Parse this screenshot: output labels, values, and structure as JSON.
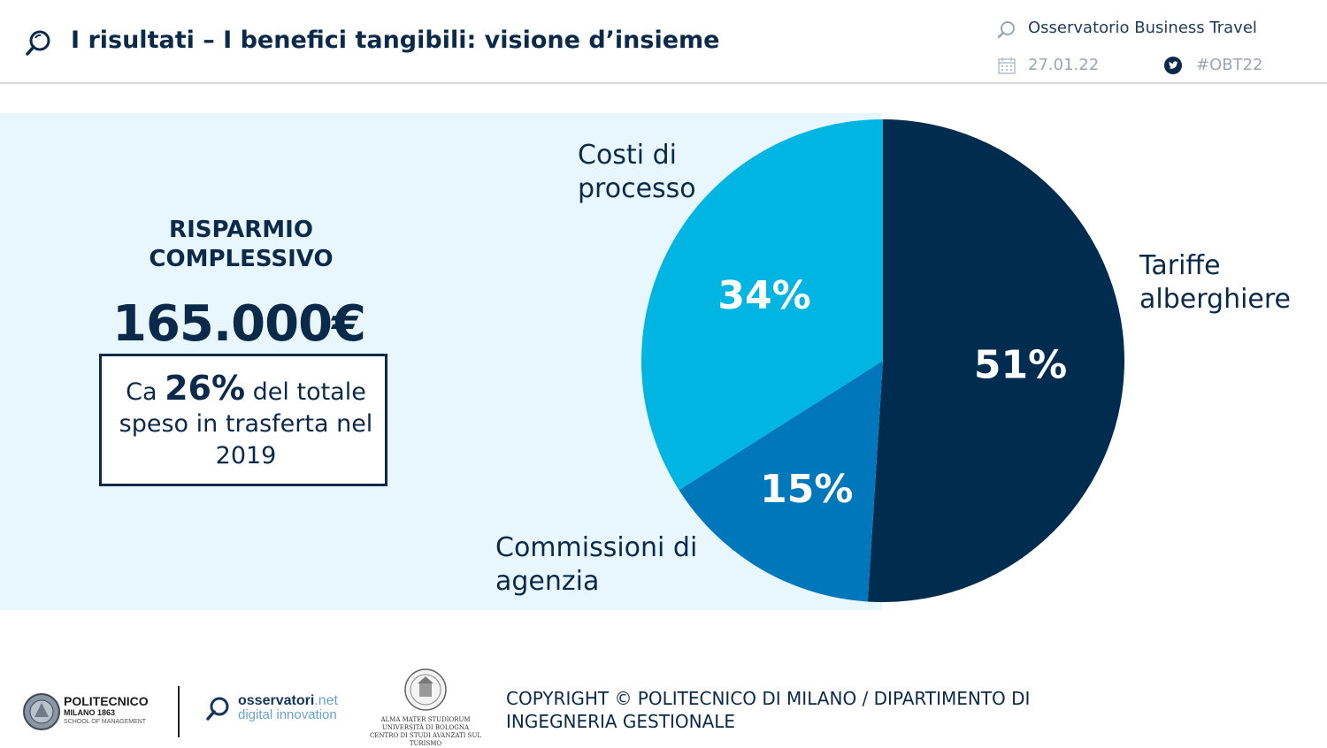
{
  "header": {
    "title": "I risultati – I benefici tangibili: visione d’insieme",
    "org": "Osservatorio Business Travel",
    "date": "27.01.22",
    "hashtag": "#OBT22"
  },
  "kpi": {
    "title_line1": "RISPARMIO",
    "title_line2": "COMPLESSIVO",
    "value": "165.000€",
    "note_prefix": "Ca ",
    "note_pct": "26%",
    "note_suffix": " del totale speso in trasferta nel 2019"
  },
  "chart_data": {
    "type": "pie",
    "slices": [
      {
        "name": "Tariffe alberghiere",
        "value": 51,
        "label": "51%",
        "color": "#002c50"
      },
      {
        "name": "Commissioni di agenzia",
        "value": 15,
        "label": "15%",
        "color": "#0077bb"
      },
      {
        "name": "Costi di processo",
        "value": 34,
        "label": "34%",
        "color": "#00b5e2"
      }
    ],
    "legend": "category labels outside slices",
    "label_lines": {
      "costi": [
        "Costi di",
        "processo"
      ],
      "tariffe": [
        "Tariffe",
        "alberghiere"
      ],
      "comm": [
        "Commissioni di",
        "agenzia"
      ]
    }
  },
  "footer": {
    "polimi_line1": "POLITECNICO",
    "polimi_line2": "MILANO 1863",
    "polimi_line3": "SCHOOL OF MANAGEMENT",
    "oss_name": "osservatori",
    "oss_tld": ".net",
    "oss_sub": "digital innovation",
    "bologna_line1": "ALMA MATER STUDIORUM",
    "bologna_line2": "UNIVERSITÀ DI BOLOGNA",
    "bologna_line3": "CENTRO DI STUDI AVANZATI SUL TURISMO",
    "copyright": "COPYRIGHT © POLITECNICO DI MILANO / DIPARTIMENTO DI INGEGNERIA GESTIONALE"
  },
  "colors": {
    "navy": "#0b2a4a",
    "panel_bg": "#e8f6fd"
  },
  "icons": [
    "search-icon",
    "calendar-icon",
    "twitter-icon",
    "seal-icon"
  ]
}
